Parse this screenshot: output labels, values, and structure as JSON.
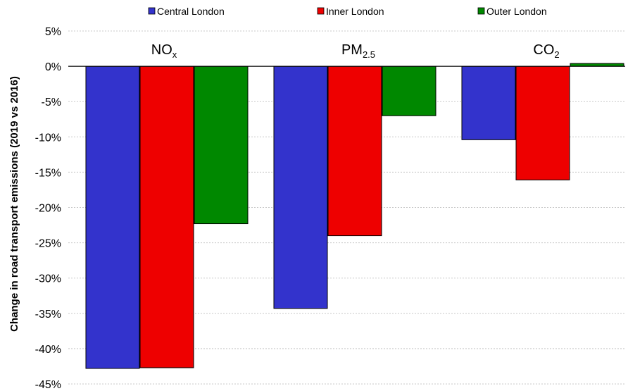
{
  "chart_data": {
    "type": "bar",
    "ylabel": "Change in road transport emissions (2019 vs 2016)",
    "ylim": [
      -45,
      5
    ],
    "yticks": [
      5,
      0,
      -5,
      -10,
      -15,
      -20,
      -25,
      -30,
      -35,
      -40,
      -45
    ],
    "ytick_labels": [
      "5%",
      "0%",
      "-5%",
      "-10%",
      "-15%",
      "-20%",
      "-25%",
      "-30%",
      "-35%",
      "-40%",
      "-45%"
    ],
    "grid": true,
    "legend_position": "top",
    "categories": [
      {
        "main": "NO",
        "sub": "x"
      },
      {
        "main": "PM",
        "sub": "2.5"
      },
      {
        "main": "CO",
        "sub": "2"
      }
    ],
    "series": [
      {
        "name": "Central London",
        "color": "#3333cc",
        "values": [
          -42.8,
          -34.3,
          -10.4
        ]
      },
      {
        "name": "Inner London",
        "color": "#ee0000",
        "values": [
          -42.7,
          -24.0,
          -16.1
        ]
      },
      {
        "name": "Outer London",
        "color": "#008800",
        "values": [
          -22.3,
          -7.0,
          0.4
        ]
      }
    ]
  }
}
